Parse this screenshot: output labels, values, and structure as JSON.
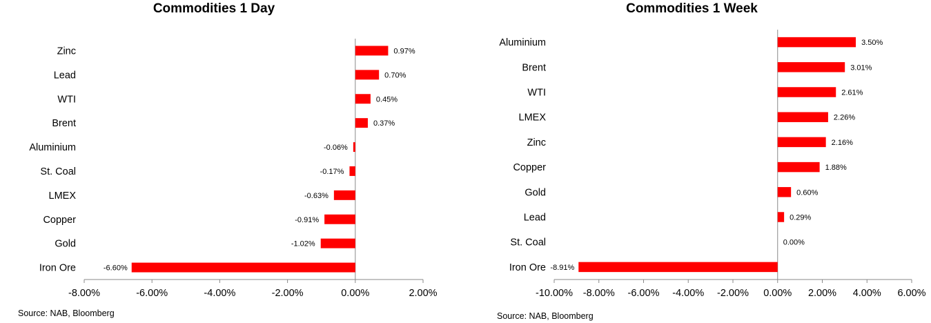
{
  "chart_data": [
    {
      "type": "bar",
      "orientation": "horizontal",
      "title": "Commodities 1 Day",
      "categories": [
        "Zinc",
        "Lead",
        "WTI",
        "Brent",
        "Aluminium",
        "St. Coal",
        "LMEX",
        "Copper",
        "Gold",
        "Iron Ore"
      ],
      "values": [
        0.97,
        0.7,
        0.45,
        0.37,
        -0.06,
        -0.17,
        -0.63,
        -0.91,
        -1.02,
        -6.6
      ],
      "value_labels": [
        "0.97%",
        "0.70%",
        "0.45%",
        "0.37%",
        "-0.06%",
        "-0.17%",
        "-0.63%",
        "-0.91%",
        "-1.02%",
        "-6.60%"
      ],
      "xlim": [
        -8,
        2
      ],
      "xticks": [
        -8,
        -6,
        -4,
        -2,
        0,
        2
      ],
      "xtick_labels": [
        "-8.00%",
        "-6.00%",
        "-4.00%",
        "-2.00%",
        "0.00%",
        "2.00%"
      ],
      "bar_color": "#ff0000",
      "grid": false,
      "source": "Source: NAB, Bloomberg"
    },
    {
      "type": "bar",
      "orientation": "horizontal",
      "title": "Commodities 1 Week",
      "categories": [
        "Aluminium",
        "Brent",
        "WTI",
        "LMEX",
        "Zinc",
        "Copper",
        "Gold",
        "Lead",
        "St. Coal",
        "Iron Ore"
      ],
      "values": [
        3.5,
        3.01,
        2.61,
        2.26,
        2.16,
        1.88,
        0.6,
        0.29,
        0.0,
        -8.91
      ],
      "value_labels": [
        "3.50%",
        "3.01%",
        "2.61%",
        "2.26%",
        "2.16%",
        "1.88%",
        "0.60%",
        "0.29%",
        "0.00%",
        "-8.91%"
      ],
      "xlim": [
        -10,
        6
      ],
      "xticks": [
        -10,
        -8,
        -6,
        -4,
        -2,
        0,
        2,
        4,
        6
      ],
      "xtick_labels": [
        "-10.00%",
        "-8.00%",
        "-6.00%",
        "-4.00%",
        "-2.00%",
        "0.00%",
        "2.00%",
        "4.00%",
        "6.00%"
      ],
      "bar_color": "#ff0000",
      "grid": false,
      "source": "Source: NAB, Bloomberg"
    }
  ]
}
